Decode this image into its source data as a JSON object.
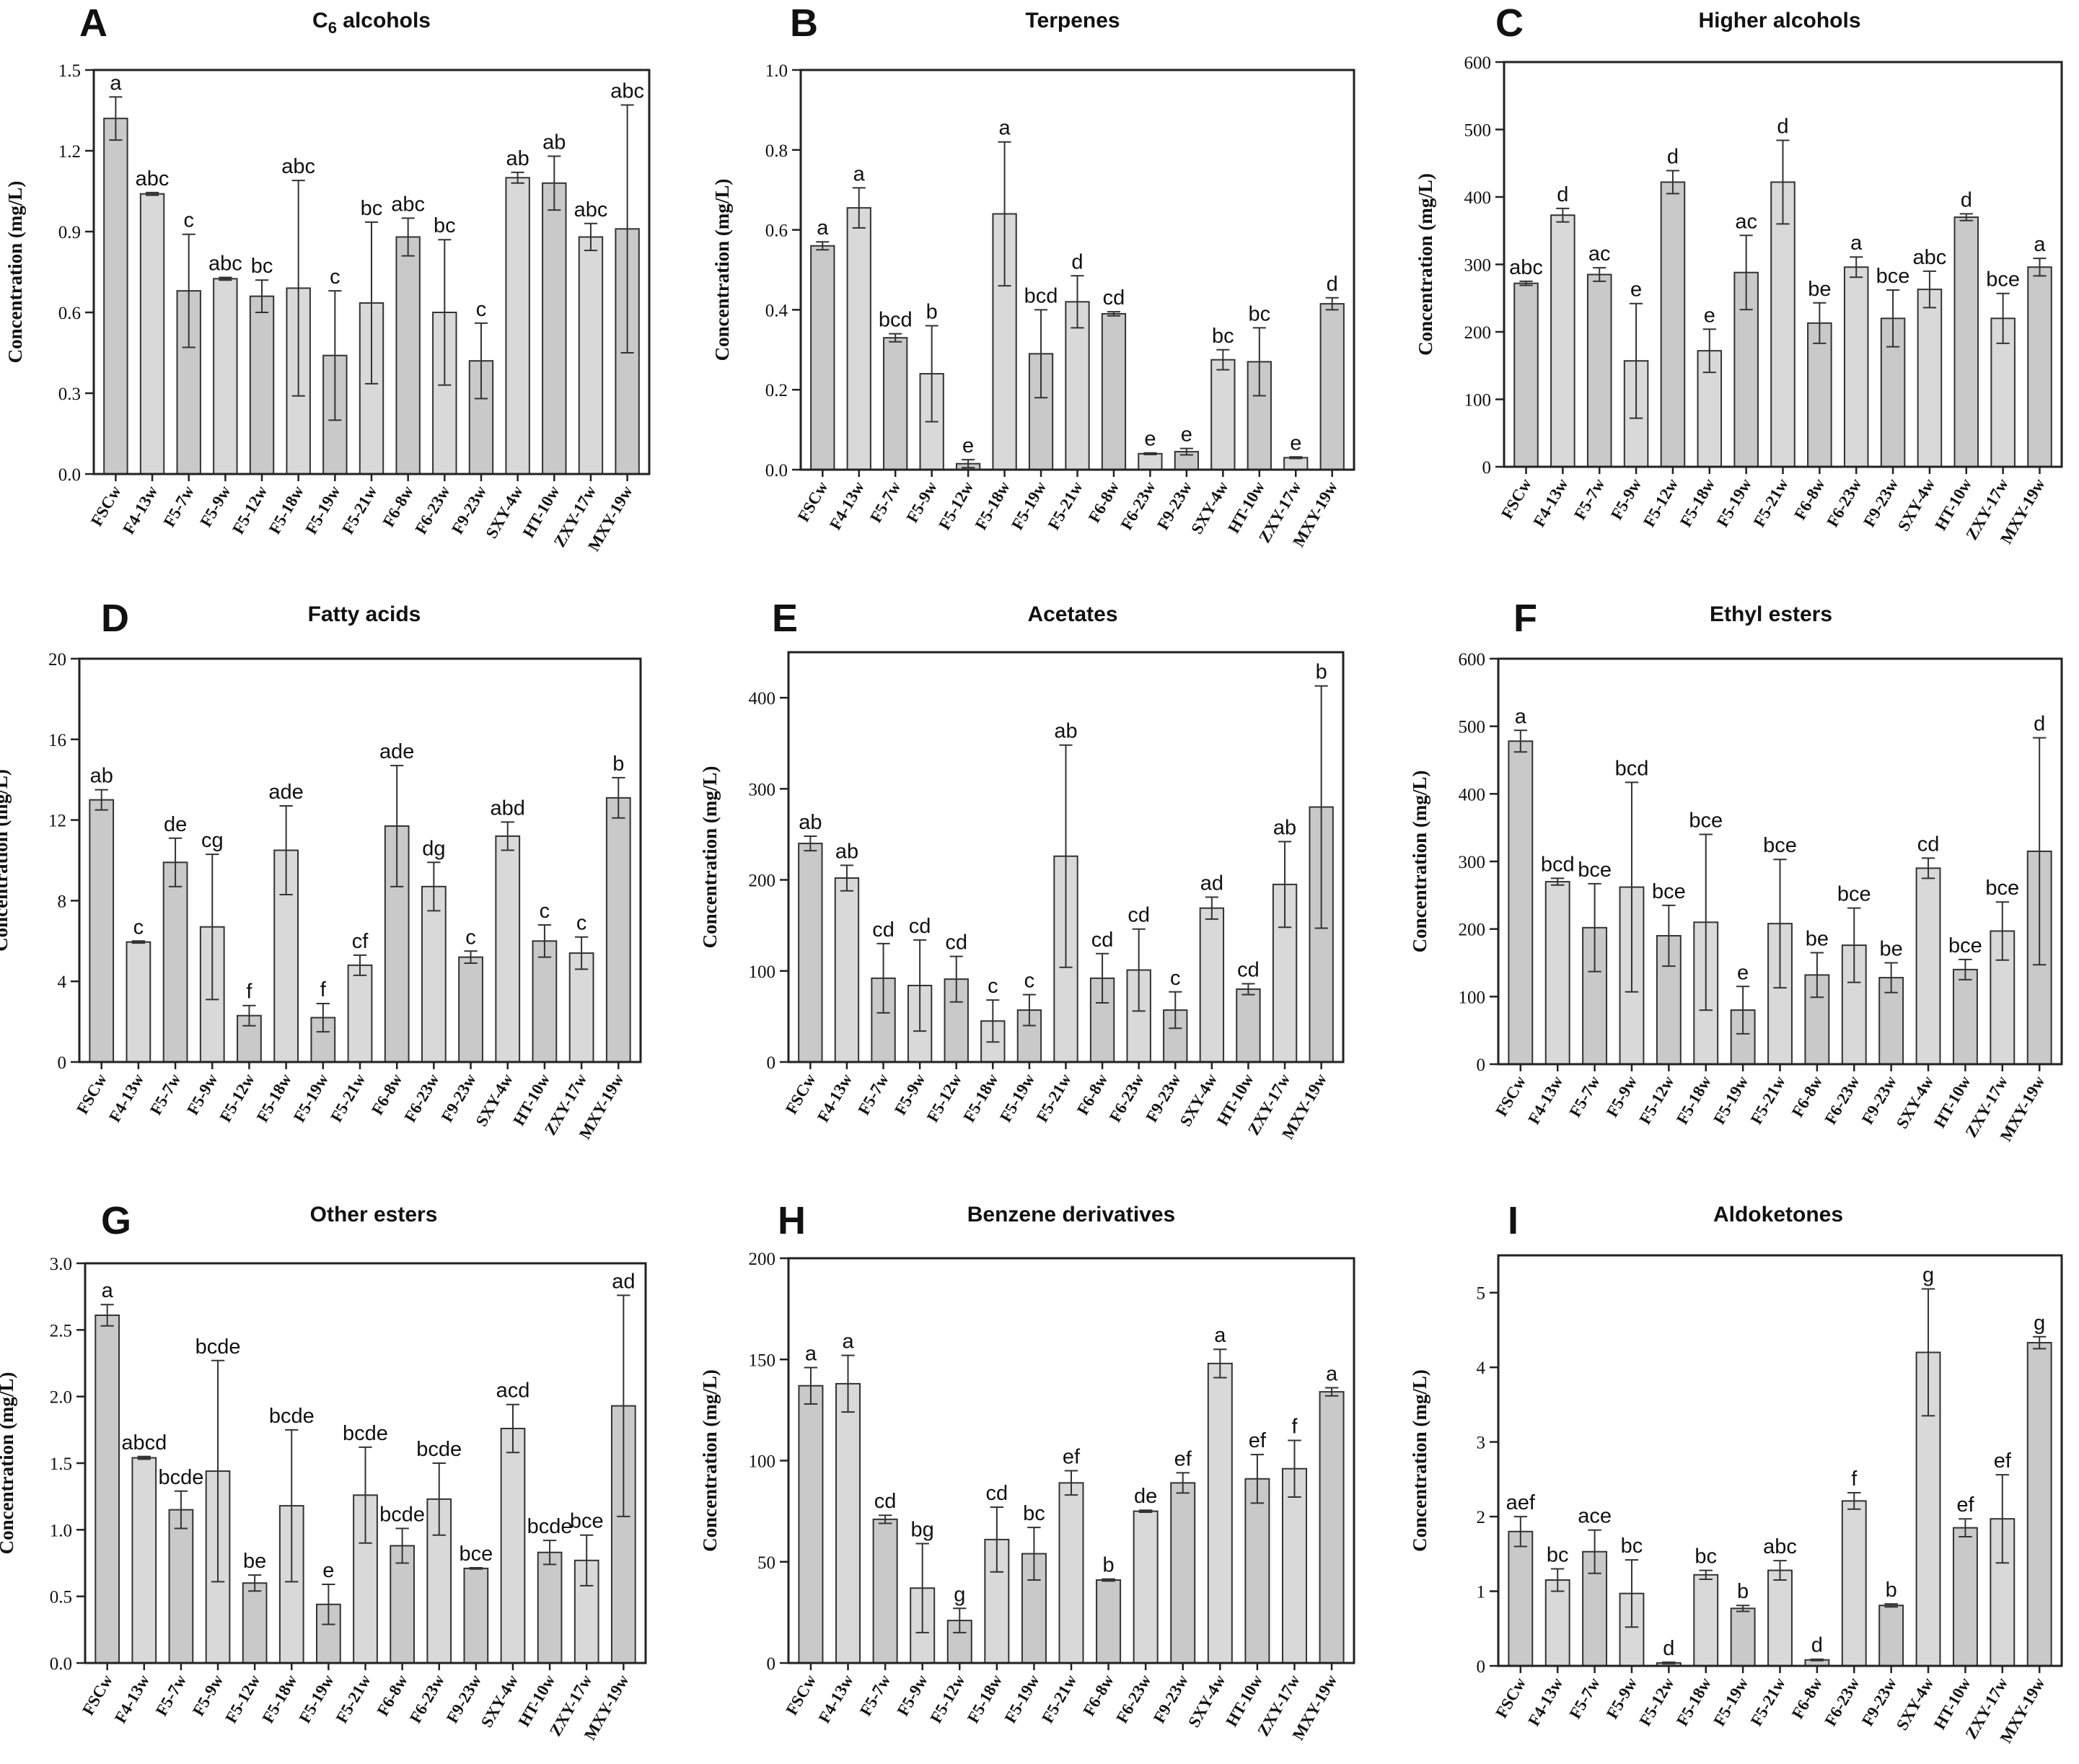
{
  "chart_data": [
    {
      "panel": "A",
      "type": "bar",
      "title": "C6 alcohols",
      "title_main": "C",
      "title_sub": "6",
      "title_rest": " alcohols",
      "ylabel": "Concentration (mg/L)",
      "ylim": [
        0,
        1.5
      ],
      "yticks": [
        "0.0",
        "0.3",
        "0.6",
        "0.9",
        "1.2",
        "1.5"
      ],
      "categories": [
        "FSCw",
        "F4-13w",
        "F5-7w",
        "F5-9w",
        "F5-12w",
        "F5-18w",
        "F5-19w",
        "F5-21w",
        "F6-8w",
        "F6-23w",
        "F9-23w",
        "SXY-4w",
        "HT-10w",
        "ZXY-17w",
        "MXY-19w"
      ],
      "values": [
        1.32,
        1.04,
        0.68,
        0.725,
        0.66,
        0.69,
        0.44,
        0.635,
        0.88,
        0.6,
        0.42,
        1.1,
        1.08,
        0.88,
        0.91
      ],
      "errors": [
        0.08,
        0.005,
        0.21,
        0.005,
        0.06,
        0.4,
        0.24,
        0.3,
        0.07,
        0.27,
        0.14,
        0.02,
        0.1,
        0.05,
        0.46
      ],
      "labels": [
        "a",
        "abc",
        "c",
        "abc",
        "bc",
        "abc",
        "c",
        "bc",
        "abc",
        "bc",
        "c",
        "ab",
        "ab",
        "abc",
        "abc"
      ]
    },
    {
      "panel": "B",
      "type": "bar",
      "title": "Terpenes",
      "ylabel": "Concentration (mg/L)",
      "ylim": [
        0,
        1.0
      ],
      "yticks": [
        "0.0",
        "0.2",
        "0.4",
        "0.6",
        "0.8",
        "1.0"
      ],
      "categories": [
        "FSCw",
        "F4-13w",
        "F5-7w",
        "F5-9w",
        "F5-12w",
        "F5-18w",
        "F5-19w",
        "F5-21w",
        "F6-8w",
        "F6-23w",
        "F9-23w",
        "SXY-4w",
        "HT-10w",
        "ZXY-17w",
        "MXY-19w"
      ],
      "values": [
        0.56,
        0.655,
        0.33,
        0.24,
        0.015,
        0.64,
        0.29,
        0.42,
        0.39,
        0.04,
        0.045,
        0.275,
        0.27,
        0.03,
        0.415
      ],
      "errors": [
        0.01,
        0.05,
        0.01,
        0.12,
        0.01,
        0.18,
        0.11,
        0.065,
        0.005,
        0.002,
        0.008,
        0.025,
        0.085,
        0.002,
        0.015
      ],
      "labels": [
        "a",
        "a",
        "bcd",
        "b",
        "e",
        "a",
        "bcd",
        "d",
        "cd",
        "e",
        "e",
        "bc",
        "bc",
        "e",
        "d"
      ]
    },
    {
      "panel": "C",
      "type": "bar",
      "title": "Higher alcohols",
      "ylabel": "Concentration (mg/L)",
      "ylim": [
        0,
        600
      ],
      "yticks": [
        "0",
        "100",
        "200",
        "300",
        "400",
        "500",
        "600"
      ],
      "categories": [
        "FSCw",
        "F4-13w",
        "F5-7w",
        "F5-9w",
        "F5-12w",
        "F5-18w",
        "F5-19w",
        "F5-21w",
        "F6-8w",
        "F6-23w",
        "F9-23w",
        "SXY-4w",
        "HT-10w",
        "ZXY-17w",
        "MXY-19w"
      ],
      "values": [
        272,
        373,
        285,
        157,
        422,
        172,
        288,
        422,
        213,
        296,
        220,
        263,
        370,
        220,
        296
      ],
      "errors": [
        3,
        10,
        10,
        85,
        17,
        32,
        55,
        62,
        30,
        15,
        42,
        27,
        5,
        37,
        13
      ],
      "labels": [
        "abc",
        "d",
        "ac",
        "e",
        "d",
        "e",
        "ac",
        "d",
        "be",
        "a",
        "bce",
        "abc",
        "d",
        "bce",
        "a"
      ]
    },
    {
      "panel": "D",
      "type": "bar",
      "title": "Fatty acids",
      "ylabel": "Concentration (mg/L)",
      "ylim": [
        0,
        20
      ],
      "yticks": [
        "0",
        "4",
        "8",
        "12",
        "16",
        "20"
      ],
      "categories": [
        "FSCw",
        "F4-13w",
        "F5-7w",
        "F5-9w",
        "F5-12w",
        "F5-18w",
        "F5-19w",
        "F5-21w",
        "F6-8w",
        "F6-23w",
        "F9-23w",
        "SXY-4w",
        "HT-10w",
        "ZXY-17w",
        "MXY-19w"
      ],
      "values": [
        13.0,
        5.95,
        9.9,
        6.7,
        2.3,
        10.5,
        2.2,
        4.8,
        11.7,
        8.7,
        5.2,
        11.2,
        6.0,
        5.4,
        13.1
      ],
      "errors": [
        0.5,
        0.05,
        1.2,
        3.6,
        0.5,
        2.2,
        0.7,
        0.5,
        3.0,
        1.2,
        0.3,
        0.7,
        0.8,
        0.8,
        1.0
      ],
      "labels": [
        "ab",
        "c",
        "de",
        "cg",
        "f",
        "ade",
        "f",
        "cf",
        "ade",
        "dg",
        "c",
        "abd",
        "c",
        "c",
        "b"
      ]
    },
    {
      "panel": "E",
      "type": "bar",
      "title": "Acetates",
      "ylabel": "Concentration (mg/L)",
      "ylim": [
        0,
        450
      ],
      "yticks": [
        "0",
        "100",
        "200",
        "300",
        "400"
      ],
      "ytick_values": [
        0,
        100,
        200,
        300,
        400
      ],
      "categories": [
        "FSCw",
        "F4-13w",
        "F5-7w",
        "F5-9w",
        "F5-12w",
        "F5-18w",
        "F5-19w",
        "F5-21w",
        "F6-8w",
        "F6-23w",
        "F9-23w",
        "SXY-4w",
        "HT-10w",
        "ZXY-17w",
        "MXY-19w"
      ],
      "values": [
        240,
        202,
        92,
        84,
        91,
        45,
        57,
        226,
        92,
        101,
        57,
        169,
        80,
        195,
        280
      ],
      "errors": [
        8,
        14,
        38,
        50,
        25,
        23,
        17,
        122,
        27,
        45,
        20,
        12,
        6,
        47,
        133
      ],
      "labels": [
        "ab",
        "ab",
        "cd",
        "cd",
        "cd",
        "c",
        "c",
        "ab",
        "cd",
        "cd",
        "c",
        "ad",
        "cd",
        "ab",
        "b"
      ]
    },
    {
      "panel": "F",
      "type": "bar",
      "title": "Ethyl esters",
      "ylabel": "Concentration (mg/L)",
      "ylim": [
        0,
        600
      ],
      "yticks": [
        "0",
        "100",
        "200",
        "300",
        "400",
        "500",
        "600"
      ],
      "categories": [
        "FSCw",
        "F4-13w",
        "F5-7w",
        "F5-9w",
        "F5-12w",
        "F5-18w",
        "F5-19w",
        "F5-21w",
        "F6-8w",
        "F6-23w",
        "F9-23w",
        "SXY-4w",
        "HT-10w",
        "ZXY-17w",
        "MXY-19w"
      ],
      "values": [
        478,
        270,
        202,
        262,
        190,
        210,
        80,
        208,
        132,
        176,
        128,
        290,
        140,
        197,
        315
      ],
      "errors": [
        16,
        5,
        65,
        155,
        45,
        130,
        35,
        95,
        33,
        55,
        22,
        15,
        15,
        43,
        168
      ],
      "labels": [
        "a",
        "bcd",
        "bce",
        "bcd",
        "bce",
        "bce",
        "e",
        "bce",
        "be",
        "bce",
        "be",
        "cd",
        "bce",
        "bce",
        "d"
      ]
    },
    {
      "panel": "G",
      "type": "bar",
      "title": "Other esters",
      "ylabel": "Concentration (mg/L)",
      "ylim": [
        0,
        3.0
      ],
      "yticks": [
        "0.0",
        "0.5",
        "1.0",
        "1.5",
        "2.0",
        "2.5",
        "3.0"
      ],
      "categories": [
        "FSCw",
        "F4-13w",
        "F5-7w",
        "F5-9w",
        "F5-12w",
        "F5-18w",
        "F5-19w",
        "F5-21w",
        "F6-8w",
        "F6-23w",
        "F9-23w",
        "SXY-4w",
        "HT-10w",
        "ZXY-17w",
        "MXY-19w"
      ],
      "values": [
        2.61,
        1.54,
        1.15,
        1.44,
        0.6,
        1.18,
        0.44,
        1.26,
        0.88,
        1.23,
        0.71,
        1.76,
        0.83,
        0.77,
        1.93
      ],
      "errors": [
        0.08,
        0.01,
        0.14,
        0.83,
        0.06,
        0.57,
        0.15,
        0.36,
        0.13,
        0.27,
        0.005,
        0.18,
        0.09,
        0.19,
        0.83
      ],
      "labels": [
        "a",
        "abcd",
        "bcde",
        "bcde",
        "be",
        "bcde",
        "e",
        "bcde",
        "bcde",
        "bcde",
        "bce",
        "acd",
        "bcde",
        "bce",
        "ad"
      ]
    },
    {
      "panel": "H",
      "type": "bar",
      "title": "Benzene derivatives",
      "ylabel": "Concentration (mg/L)",
      "ylim": [
        0,
        200
      ],
      "yticks": [
        "0",
        "50",
        "100",
        "150",
        "200"
      ],
      "categories": [
        "FSCw",
        "F4-13w",
        "F5-7w",
        "F5-9w",
        "F5-12w",
        "F5-18w",
        "F5-19w",
        "F5-21w",
        "F6-8w",
        "F6-23w",
        "F9-23w",
        "SXY-4w",
        "HT-10w",
        "ZXY-17w",
        "MXY-19w"
      ],
      "values": [
        137,
        138,
        71,
        37,
        21,
        61,
        54,
        89,
        41,
        75,
        89,
        148,
        91,
        96,
        134
      ],
      "errors": [
        9,
        14,
        2,
        22,
        6,
        16,
        13,
        6,
        0.5,
        0.5,
        5,
        7,
        12,
        14,
        2
      ],
      "labels": [
        "a",
        "a",
        "cd",
        "bg",
        "g",
        "cd",
        "bc",
        "ef",
        "b",
        "de",
        "ef",
        "a",
        "ef",
        "f",
        "a"
      ]
    },
    {
      "panel": "I",
      "type": "bar",
      "title": "Aldoketones",
      "ylabel": "Concentration (mg/L)",
      "ylim": [
        0,
        5.5
      ],
      "yticks": [
        "0",
        "1",
        "2",
        "3",
        "4",
        "5"
      ],
      "ytick_values": [
        0,
        1,
        2,
        3,
        4,
        5
      ],
      "categories": [
        "FSCw",
        "F4-13w",
        "F5-7w",
        "F5-9w",
        "F5-12w",
        "F5-18w",
        "F5-19w",
        "F5-21w",
        "F6-8w",
        "F6-23w",
        "F9-23w",
        "SXY-4w",
        "HT-10w",
        "ZXY-17w",
        "MXY-19w"
      ],
      "values": [
        1.8,
        1.15,
        1.53,
        0.97,
        0.04,
        1.22,
        0.77,
        1.28,
        0.08,
        2.21,
        0.81,
        4.2,
        1.85,
        1.97,
        4.33
      ],
      "errors": [
        0.2,
        0.15,
        0.29,
        0.45,
        0.01,
        0.06,
        0.04,
        0.13,
        0.01,
        0.11,
        0.02,
        0.85,
        0.12,
        0.59,
        0.08
      ],
      "labels": [
        "aef",
        "bc",
        "ace",
        "bc",
        "d",
        "bc",
        "b",
        "abc",
        "d",
        "f",
        "b",
        "g",
        "ef",
        "ef",
        "g"
      ]
    }
  ]
}
